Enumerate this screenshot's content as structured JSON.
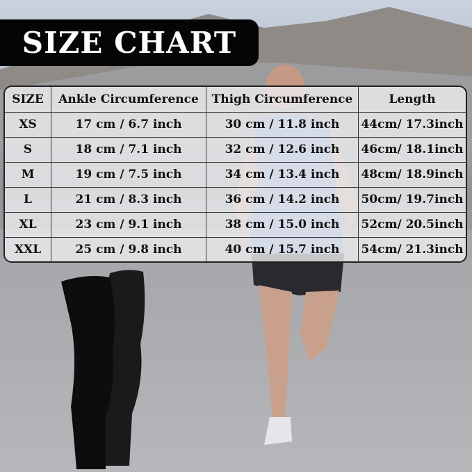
{
  "title": "SIZE CHART",
  "table": {
    "headers": [
      "SIZE",
      "Ankle Circumference",
      "Thigh Circumference",
      "Length"
    ],
    "rows": [
      [
        "XS",
        "17 cm / 6.7 inch",
        "30 cm / 11.8 inch",
        "44cm/ 17.3inch"
      ],
      [
        "S",
        "18 cm / 7.1 inch",
        "32 cm / 12.6 inch",
        "46cm/ 18.1inch"
      ],
      [
        "M",
        "19 cm / 7.5 inch",
        "34 cm / 13.4 inch",
        "48cm/ 18.9inch"
      ],
      [
        "L",
        "21 cm / 8.3 inch",
        "36 cm / 14.2 inch",
        "50cm/ 19.7inch"
      ],
      [
        "XL",
        "23 cm / 9.1 inch",
        "38 cm / 15.0 inch",
        "52cm/ 20.5inch"
      ],
      [
        "XXL",
        "25 cm / 9.8 inch",
        "40 cm / 15.7 inch",
        "54cm/ 21.3inch"
      ]
    ]
  },
  "colors": {
    "title_bg": "#050505",
    "sleeve": "#111111",
    "shirt": "#6f8ec9"
  }
}
